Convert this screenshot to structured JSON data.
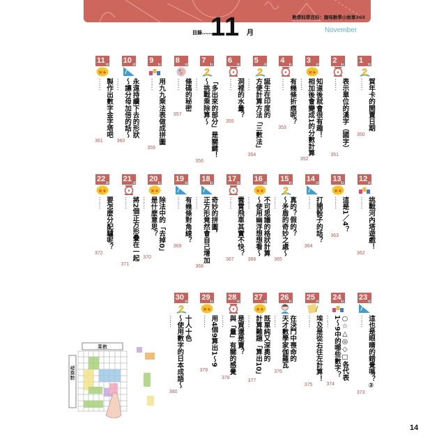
{
  "header": {
    "series_title": "數學科學百科：趣味數學小故事365",
    "toc_label": "目錄……",
    "month_number": "11",
    "month_char": "月",
    "month_english": "November",
    "day_suffix": "日",
    "band_color": "#cd675d",
    "accent_color": "#c9625a"
  },
  "entries": [
    {
      "day": "1",
      "icon": "calendar-two-icon",
      "lines": [
        "賀年卡的開賣日期"
      ],
      "page": "350"
    },
    {
      "day": "2",
      "icon": "scale-icon",
      "lines": [
        "表示單位的漢字（國字）"
      ],
      "page": "351"
    },
    {
      "day": "3",
      "icon": "math-operations-icon",
      "lines": [
        "知道後就會很有趣！",
        "相加後會變成1的分數計算"
      ],
      "page": "352"
    },
    {
      "day": "4",
      "icon": "scale-icon",
      "lines": [
        "有幾條折痕呢？"
      ],
      "page": "353"
    },
    {
      "day": "5",
      "icon": "calendar-two-icon",
      "lines": [
        "誕生在印度的",
        "方便計算方法「三數法」"
      ],
      "page": "354"
    },
    {
      "day": "6",
      "icon": "scale-icon",
      "lines": [
        "洞裡的水量？"
      ],
      "page": "355"
    },
    {
      "day": "7",
      "icon": "calendar-two-icon",
      "lines": [
        "「多出來的部分」是關鍵！",
        "～挑戰乘除算～"
      ],
      "page": "356"
    },
    {
      "day": "8",
      "icon": "palette-icon",
      "lines": [
        "條碼的秘密"
      ],
      "page": "357"
    },
    {
      "day": "9",
      "icon": "number-blocks-icon",
      "lines": [
        "用九九乘法表做成拼圖"
      ],
      "page": "359"
    },
    {
      "day": "10",
      "icon": "protractor-icon",
      "lines": [
        "永遠持續下去的形狀",
        "～讓分母加倍的話～"
      ],
      "page": "360"
    },
    {
      "day": "11",
      "icon": "math-operations-icon",
      "lines": [
        "製作出數字金字塔吧"
      ],
      "page": "361"
    },
    {
      "day": "12",
      "icon": "number-blocks-icon",
      "lines": [
        "挑戰河內塔遊戲！"
      ],
      "page": "362"
    },
    {
      "day": "13",
      "icon": "math-operations-icon",
      "lines": [
        "這是1／4？"
      ],
      "page": "363"
    },
    {
      "day": "14",
      "icon": "protractor-icon",
      "lines": [
        "打開骰子的話？"
      ],
      "page": "364"
    },
    {
      "day": "15",
      "icon": "calendar-two-icon",
      "lines": [
        "真的？假的？",
        "～矛盾的奇妙之處～"
      ],
      "page": "365"
    },
    {
      "day": "16",
      "icon": "math-operations-icon",
      "lines": [
        "不可思議的格狀計算",
        "～使用幽浮想想看～"
      ],
      "page": "366"
    },
    {
      "day": "17",
      "icon": "scale-icon",
      "lines": [
        "雲霄飛車其實不快？"
      ],
      "page": "367"
    },
    {
      "day": "18",
      "icon": "protractor-icon",
      "lines": [
        "奇妙的拼圖，",
        "正方形竟然會自己增加"
      ],
      "page": "368"
    },
    {
      "day": "19",
      "icon": "protractor-icon",
      "lines": [
        "有幾條對角線？"
      ],
      "page": "369"
    },
    {
      "day": "20",
      "icon": "math-operations-icon",
      "lines": [
        "除法中的「去掉0」",
        "是什麼意思？"
      ],
      "page": "370"
    },
    {
      "day": "21",
      "icon": "scale-icon",
      "lines": [
        "將2個正方形疊在一起"
      ],
      "page": "371"
    },
    {
      "day": "22",
      "icon": "math-operations-icon",
      "lines": [
        "要怎麼分配驢呢？"
      ],
      "page": "372"
    },
    {
      "day": "23",
      "icon": "protractor-icon",
      "lines": [
        "這也是眼睛的錯覺嗎？②"
      ],
      "page": "373"
    },
    {
      "day": "24",
      "icon": "number-blocks-icon",
      "lines": [
        "○☆△◎◇□各代表",
        "1～9中的哪些數字？"
      ],
      "page": "374"
    },
    {
      "day": "25",
      "icon": "papyrus-icon",
      "lines": [
        "埃及是從右往左計算！"
      ],
      "page": "375"
    },
    {
      "day": "26",
      "icon": "mathematician-icon",
      "lines": [
        "在決鬥中喪命的",
        "天才數學家伽羅瓦"
      ],
      "page": "376"
    },
    {
      "day": "27",
      "icon": "math-operations-icon",
      "lines": [
        "既單純又深奧的",
        "計算難題「算出10」"
      ],
      "page": "377"
    },
    {
      "day": "28",
      "icon": "scale-icon",
      "lines": [
        "是買還是賣？",
        "與「量」有關的感覺"
      ],
      "page": "378"
    },
    {
      "day": "29",
      "icon": "math-operations-icon",
      "lines": [
        "用4個9算出1～9"
      ],
      "page": "379"
    },
    {
      "day": "30",
      "icon": "calendar-two-icon",
      "lines": [
        "十人十色",
        "～使用數字的日本成語～"
      ],
      "page": "380"
    }
  ],
  "leader": "……",
  "illustration": {
    "multiplier_label": "乘數",
    "multiplicand_label": "被乘數"
  },
  "page_number": "14"
}
